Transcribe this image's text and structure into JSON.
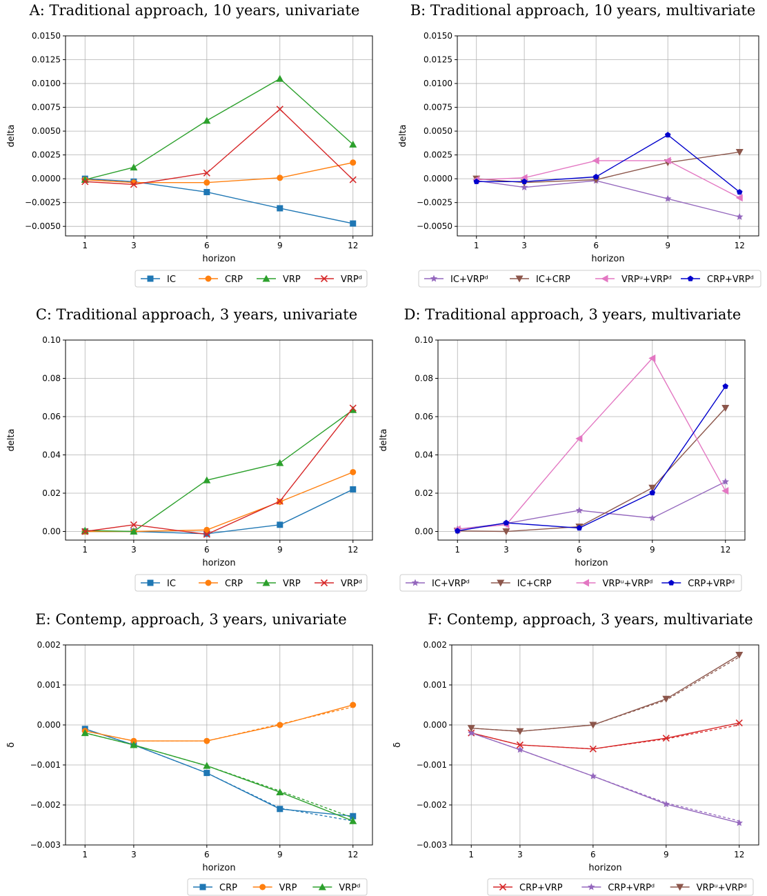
{
  "colors": {
    "IC": "#1f77b4",
    "CRP": "#ff7f0e",
    "VRP": "#2ca02c",
    "VRPd": "#d62728",
    "IC+VRPd": "#9467bd",
    "IC+CRP": "#8c564b",
    "VRPu+VRPd": "#e377c2",
    "CRP+VRPd_blue": "#0000cc",
    "CRP+VRP": "#d62728",
    "CRP+VRPd_purple": "#9467bd",
    "VRPu+VRPd_brown": "#8c564b"
  },
  "chart_data": [
    {
      "id": "A",
      "type": "line",
      "title": "A: Traditional approach, 10 years, univariate",
      "xlabel": "horizon",
      "ylabel": "delta",
      "x": [
        1,
        3,
        6,
        9,
        12
      ],
      "xticks": [
        "1",
        "3",
        "6",
        "9",
        "12"
      ],
      "ylim": [
        -0.006,
        0.015
      ],
      "yticks": [
        "−0.0050",
        "−0.0025",
        "0.0000",
        "0.0025",
        "0.0050",
        "0.0075",
        "0.0100",
        "0.0125",
        "0.0150"
      ],
      "ytick_values": [
        -0.005,
        -0.0025,
        0,
        0.0025,
        0.005,
        0.0075,
        0.01,
        0.0125,
        0.015
      ],
      "grid": true,
      "legend": "bottom",
      "series": [
        {
          "name": "IC",
          "color_key": "IC",
          "marker": "square",
          "values": [
            0.0,
            -0.0003,
            -0.0014,
            -0.0031,
            -0.0047
          ]
        },
        {
          "name": "CRP",
          "color_key": "CRP",
          "marker": "circle",
          "values": [
            -0.0001,
            -0.0004,
            -0.0004,
            0.0001,
            0.0017
          ]
        },
        {
          "name": "VRP",
          "color_key": "VRP",
          "marker": "triangle-up",
          "values": [
            -0.0001,
            0.0012,
            0.0061,
            0.0105,
            0.0036
          ]
        },
        {
          "name": "VRPᵈ",
          "color_key": "VRPd",
          "marker": "x",
          "values": [
            -0.0003,
            -0.0006,
            0.0006,
            0.0073,
            -0.0001
          ]
        }
      ]
    },
    {
      "id": "B",
      "type": "line",
      "title": "B: Traditional approach, 10 years, multivariate",
      "xlabel": "horizon",
      "ylabel": "delta",
      "x": [
        1,
        3,
        6,
        9,
        12
      ],
      "xticks": [
        "1",
        "3",
        "6",
        "9",
        "12"
      ],
      "ylim": [
        -0.006,
        0.015
      ],
      "yticks": [
        "−0.0050",
        "−0.0025",
        "0.0000",
        "0.0025",
        "0.0050",
        "0.0075",
        "0.0100",
        "0.0125",
        "0.0150"
      ],
      "ytick_values": [
        -0.005,
        -0.0025,
        0,
        0.0025,
        0.005,
        0.0075,
        0.01,
        0.0125,
        0.015
      ],
      "grid": true,
      "legend": "bottom",
      "series": [
        {
          "name": "IC+VRPᵈ",
          "color_key": "IC+VRPd",
          "marker": "star",
          "values": [
            -0.0002,
            -0.0009,
            -0.0002,
            -0.0021,
            -0.004
          ]
        },
        {
          "name": "IC+CRP",
          "color_key": "IC+CRP",
          "marker": "triangle-down",
          "values": [
            0.0,
            -0.0004,
            -0.0001,
            0.0017,
            0.0028
          ]
        },
        {
          "name": "VRPᵘ+VRPᵈ",
          "color_key": "VRPu+VRPd",
          "marker": "triangle-left",
          "values": [
            -0.0001,
            0.0001,
            0.0019,
            0.0019,
            -0.002
          ]
        },
        {
          "name": "CRP+VRPᵈ",
          "color_key": "CRP+VRPd_blue",
          "marker": "pentagon",
          "values": [
            -0.0003,
            -0.0003,
            0.0002,
            0.0046,
            -0.0014
          ]
        }
      ]
    },
    {
      "id": "C",
      "type": "line",
      "title": "C: Traditional approach, 3 years, univariate",
      "xlabel": "horizon",
      "ylabel": "delta",
      "x": [
        1,
        3,
        6,
        9,
        12
      ],
      "xticks": [
        "1",
        "3",
        "6",
        "9",
        "12"
      ],
      "ylim": [
        -0.0045,
        0.1
      ],
      "yticks": [
        "0.00",
        "0.02",
        "0.04",
        "0.06",
        "0.08",
        "0.10"
      ],
      "ytick_values": [
        0,
        0.02,
        0.04,
        0.06,
        0.08,
        0.1
      ],
      "grid": true,
      "legend": "bottom",
      "series": [
        {
          "name": "IC",
          "color_key": "IC",
          "marker": "square",
          "values": [
            0.0,
            0.0,
            -0.0012,
            0.0035,
            0.022
          ]
        },
        {
          "name": "CRP",
          "color_key": "CRP",
          "marker": "circle",
          "values": [
            0.0,
            0.0,
            0.0008,
            0.0155,
            0.031
          ]
        },
        {
          "name": "VRP",
          "color_key": "VRP",
          "marker": "triangle-up",
          "values": [
            0.0005,
            0.0,
            0.0268,
            0.0358,
            0.0635
          ]
        },
        {
          "name": "VRPᵈ",
          "color_key": "VRPd",
          "marker": "x",
          "values": [
            0.0,
            0.0035,
            -0.0015,
            0.0158,
            0.0645
          ]
        }
      ]
    },
    {
      "id": "D",
      "type": "line",
      "title": "D: Traditional approach, 3 years, multivariate",
      "xlabel": "horizon",
      "ylabel": "delta",
      "x": [
        1,
        3,
        6,
        9,
        12
      ],
      "xticks": [
        "1",
        "3",
        "6",
        "9",
        "12"
      ],
      "ylim": [
        -0.0045,
        0.1
      ],
      "yticks": [
        "0.00",
        "0.02",
        "0.04",
        "0.06",
        "0.08",
        "0.10"
      ],
      "ytick_values": [
        0,
        0.02,
        0.04,
        0.06,
        0.08,
        0.1
      ],
      "grid": true,
      "legend": "bottom",
      "series": [
        {
          "name": "IC+VRPᵈ",
          "color_key": "IC+VRPd",
          "marker": "star",
          "values": [
            0.0012,
            0.0042,
            0.011,
            0.007,
            0.026
          ]
        },
        {
          "name": "IC+CRP",
          "color_key": "IC+CRP",
          "marker": "triangle-down",
          "values": [
            0.0003,
            0.0,
            0.0025,
            0.0228,
            0.0645
          ]
        },
        {
          "name": "VRPᵘ+VRPᵈ",
          "color_key": "VRPu+VRPd",
          "marker": "triangle-left",
          "values": [
            0.0012,
            0.0035,
            0.0485,
            0.0905,
            0.0212
          ]
        },
        {
          "name": "CRP+VRPᵈ",
          "color_key": "CRP+VRPd_blue",
          "marker": "pentagon",
          "values": [
            0.0003,
            0.0045,
            0.0018,
            0.0202,
            0.0758
          ]
        }
      ]
    },
    {
      "id": "E",
      "type": "line",
      "title": "E: Contemp, approach, 3 years, univariate",
      "xlabel": "horizon",
      "ylabel": "δ",
      "x": [
        1,
        3,
        6,
        9,
        12
      ],
      "xticks": [
        "1",
        "3",
        "6",
        "9",
        "12"
      ],
      "ylim": [
        -0.003,
        0.002
      ],
      "yticks": [
        "−0.003",
        "−0.002",
        "−0.001",
        "0.000",
        "0.001",
        "0.002"
      ],
      "ytick_values": [
        -0.003,
        -0.002,
        -0.001,
        0,
        0.001,
        0.002
      ],
      "grid": true,
      "legend": "bottom",
      "series": [
        {
          "name": "CRP",
          "color_key": "IC",
          "marker": "square",
          "values": [
            -0.0001,
            -0.0005,
            -0.0012,
            -0.0021,
            -0.00228
          ],
          "values_dashed": [
            -0.0001,
            -0.0005,
            -0.0012,
            -0.00208,
            -0.0024
          ]
        },
        {
          "name": "VRP",
          "color_key": "CRP",
          "marker": "circle",
          "values": [
            -0.00015,
            -0.0004,
            -0.0004,
            0.0,
            0.0005
          ],
          "values_dashed": [
            -0.00015,
            -0.0004,
            -0.0004,
            2e-05,
            0.00045
          ]
        },
        {
          "name": "VRPᵈ",
          "color_key": "VRP",
          "marker": "triangle-up",
          "values": [
            -0.0002,
            -0.0005,
            -0.00102,
            -0.00168,
            -0.0024
          ],
          "values_dashed": [
            -0.0002,
            -0.0005,
            -0.00102,
            -0.00165,
            -0.00232
          ]
        }
      ]
    },
    {
      "id": "F",
      "type": "line",
      "title": "F: Contemp, approach, 3 years, multivariate",
      "xlabel": "horizon",
      "ylabel": "δ",
      "x": [
        1,
        3,
        6,
        9,
        12
      ],
      "xticks": [
        "1",
        "3",
        "6",
        "9",
        "12"
      ],
      "ylim": [
        -0.003,
        0.002
      ],
      "yticks": [
        "−0.003",
        "−0.002",
        "−0.001",
        "0.000",
        "0.001",
        "0.002"
      ],
      "ytick_values": [
        -0.003,
        -0.002,
        -0.001,
        0,
        0.001,
        0.002
      ],
      "grid": true,
      "legend": "bottom",
      "series": [
        {
          "name": "CRP+VRP",
          "color_key": "CRP+VRP",
          "marker": "x",
          "values": [
            -0.0002,
            -0.0005,
            -0.0006,
            -0.00033,
            5e-05
          ],
          "values_dashed": [
            -0.0002,
            -0.0005,
            -0.0006,
            -0.00035,
            0.0
          ]
        },
        {
          "name": "CRP+VRPᵈ",
          "color_key": "CRP+VRPd_purple",
          "marker": "star",
          "values": [
            -0.0002,
            -0.00062,
            -0.00128,
            -0.00198,
            -0.00245
          ],
          "values_dashed": [
            -0.0002,
            -0.00062,
            -0.00128,
            -0.00195,
            -0.0024
          ]
        },
        {
          "name": "VRPᵘ+VRPᵈ",
          "color_key": "VRPu+VRPd_brown",
          "marker": "triangle-down",
          "values": [
            -8e-05,
            -0.00016,
            0.0,
            0.00065,
            0.00175
          ],
          "values_dashed": [
            -8e-05,
            -0.00016,
            0.0,
            0.00062,
            0.0017
          ]
        }
      ]
    }
  ]
}
